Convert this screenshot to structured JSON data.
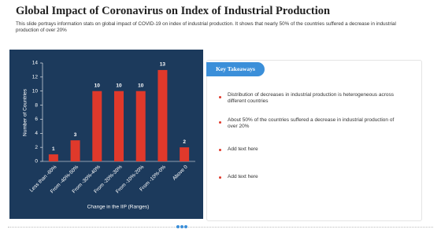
{
  "title": "Global Impact of Coronavirus on Index of Industrial Production",
  "description": "This slide portrays information stats on global impact of COVID-19 on index of industrial production. It shows that nearly 50% of the countries suffered a decrease in industrial production of over 20%",
  "key_takeaways": {
    "heading": "Key Takeaways",
    "items": [
      "Distribution of decreases in industrial production is heterogeneous across different countries",
      "About 50% of the countries suffered a decrease in industrial production of over 20%",
      "Add text here",
      "Add text here"
    ]
  },
  "chart_data": {
    "type": "bar",
    "x_label": "Change in the IIP (Ranges)",
    "y_label": "Number of Countries",
    "categories": [
      "Less than -60%",
      "From -40%-50%",
      "From -30%-40%",
      "From -20%-30%",
      "From -10%-20%",
      "From -10%-0%",
      "Above 0"
    ],
    "values": [
      1,
      3,
      10,
      10,
      10,
      13,
      2
    ],
    "color": "#e0392b",
    "ylim": [
      0,
      14
    ],
    "yticks": [
      0,
      2,
      4,
      6,
      8,
      10,
      12,
      14
    ]
  }
}
